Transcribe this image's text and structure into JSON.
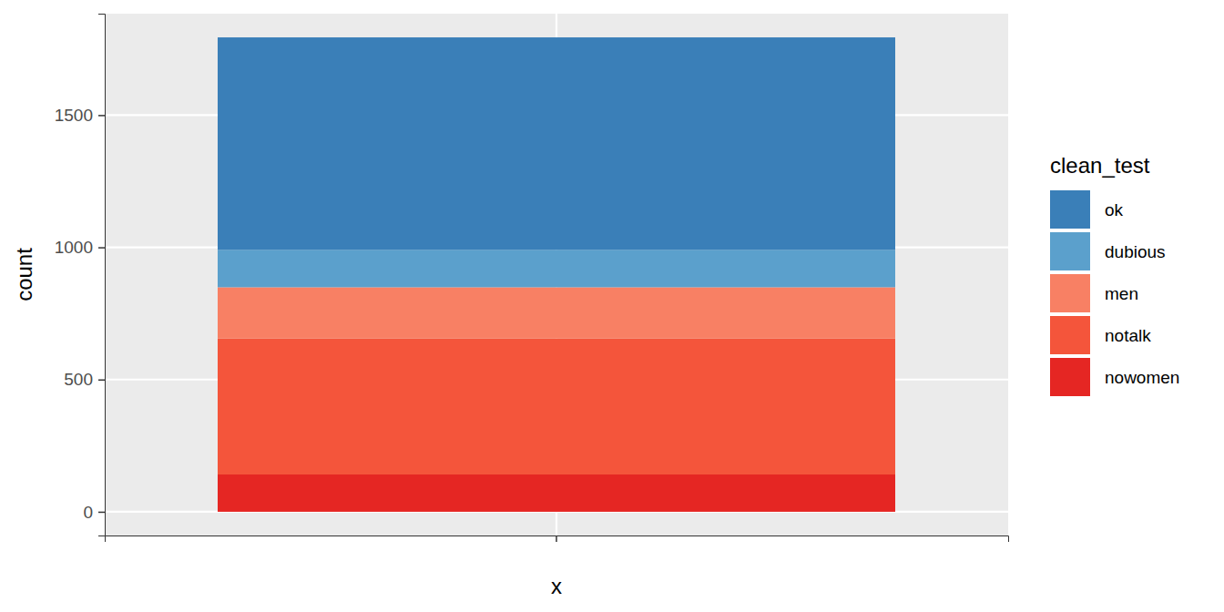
{
  "chart_data": {
    "type": "bar",
    "stacked": true,
    "grid": true,
    "legend": "right",
    "x_label": "x",
    "y_label": "count",
    "legend_title": "clean_test",
    "categories": [
      null
    ],
    "series": [
      {
        "name": "ok",
        "color": "#3A7FB8",
        "values": [
          803
        ]
      },
      {
        "name": "dubious",
        "color": "#5BA0CC",
        "values": [
          142
        ]
      },
      {
        "name": "men",
        "color": "#F88064",
        "values": [
          194
        ]
      },
      {
        "name": "notalk",
        "color": "#F4553B",
        "values": [
          514
        ]
      },
      {
        "name": "nowomen",
        "color": "#E52623",
        "values": [
          141
        ]
      }
    ],
    "ylim": [
      -89.7,
      1883.7
    ],
    "yticks": [
      0,
      500,
      1000,
      1500
    ]
  }
}
